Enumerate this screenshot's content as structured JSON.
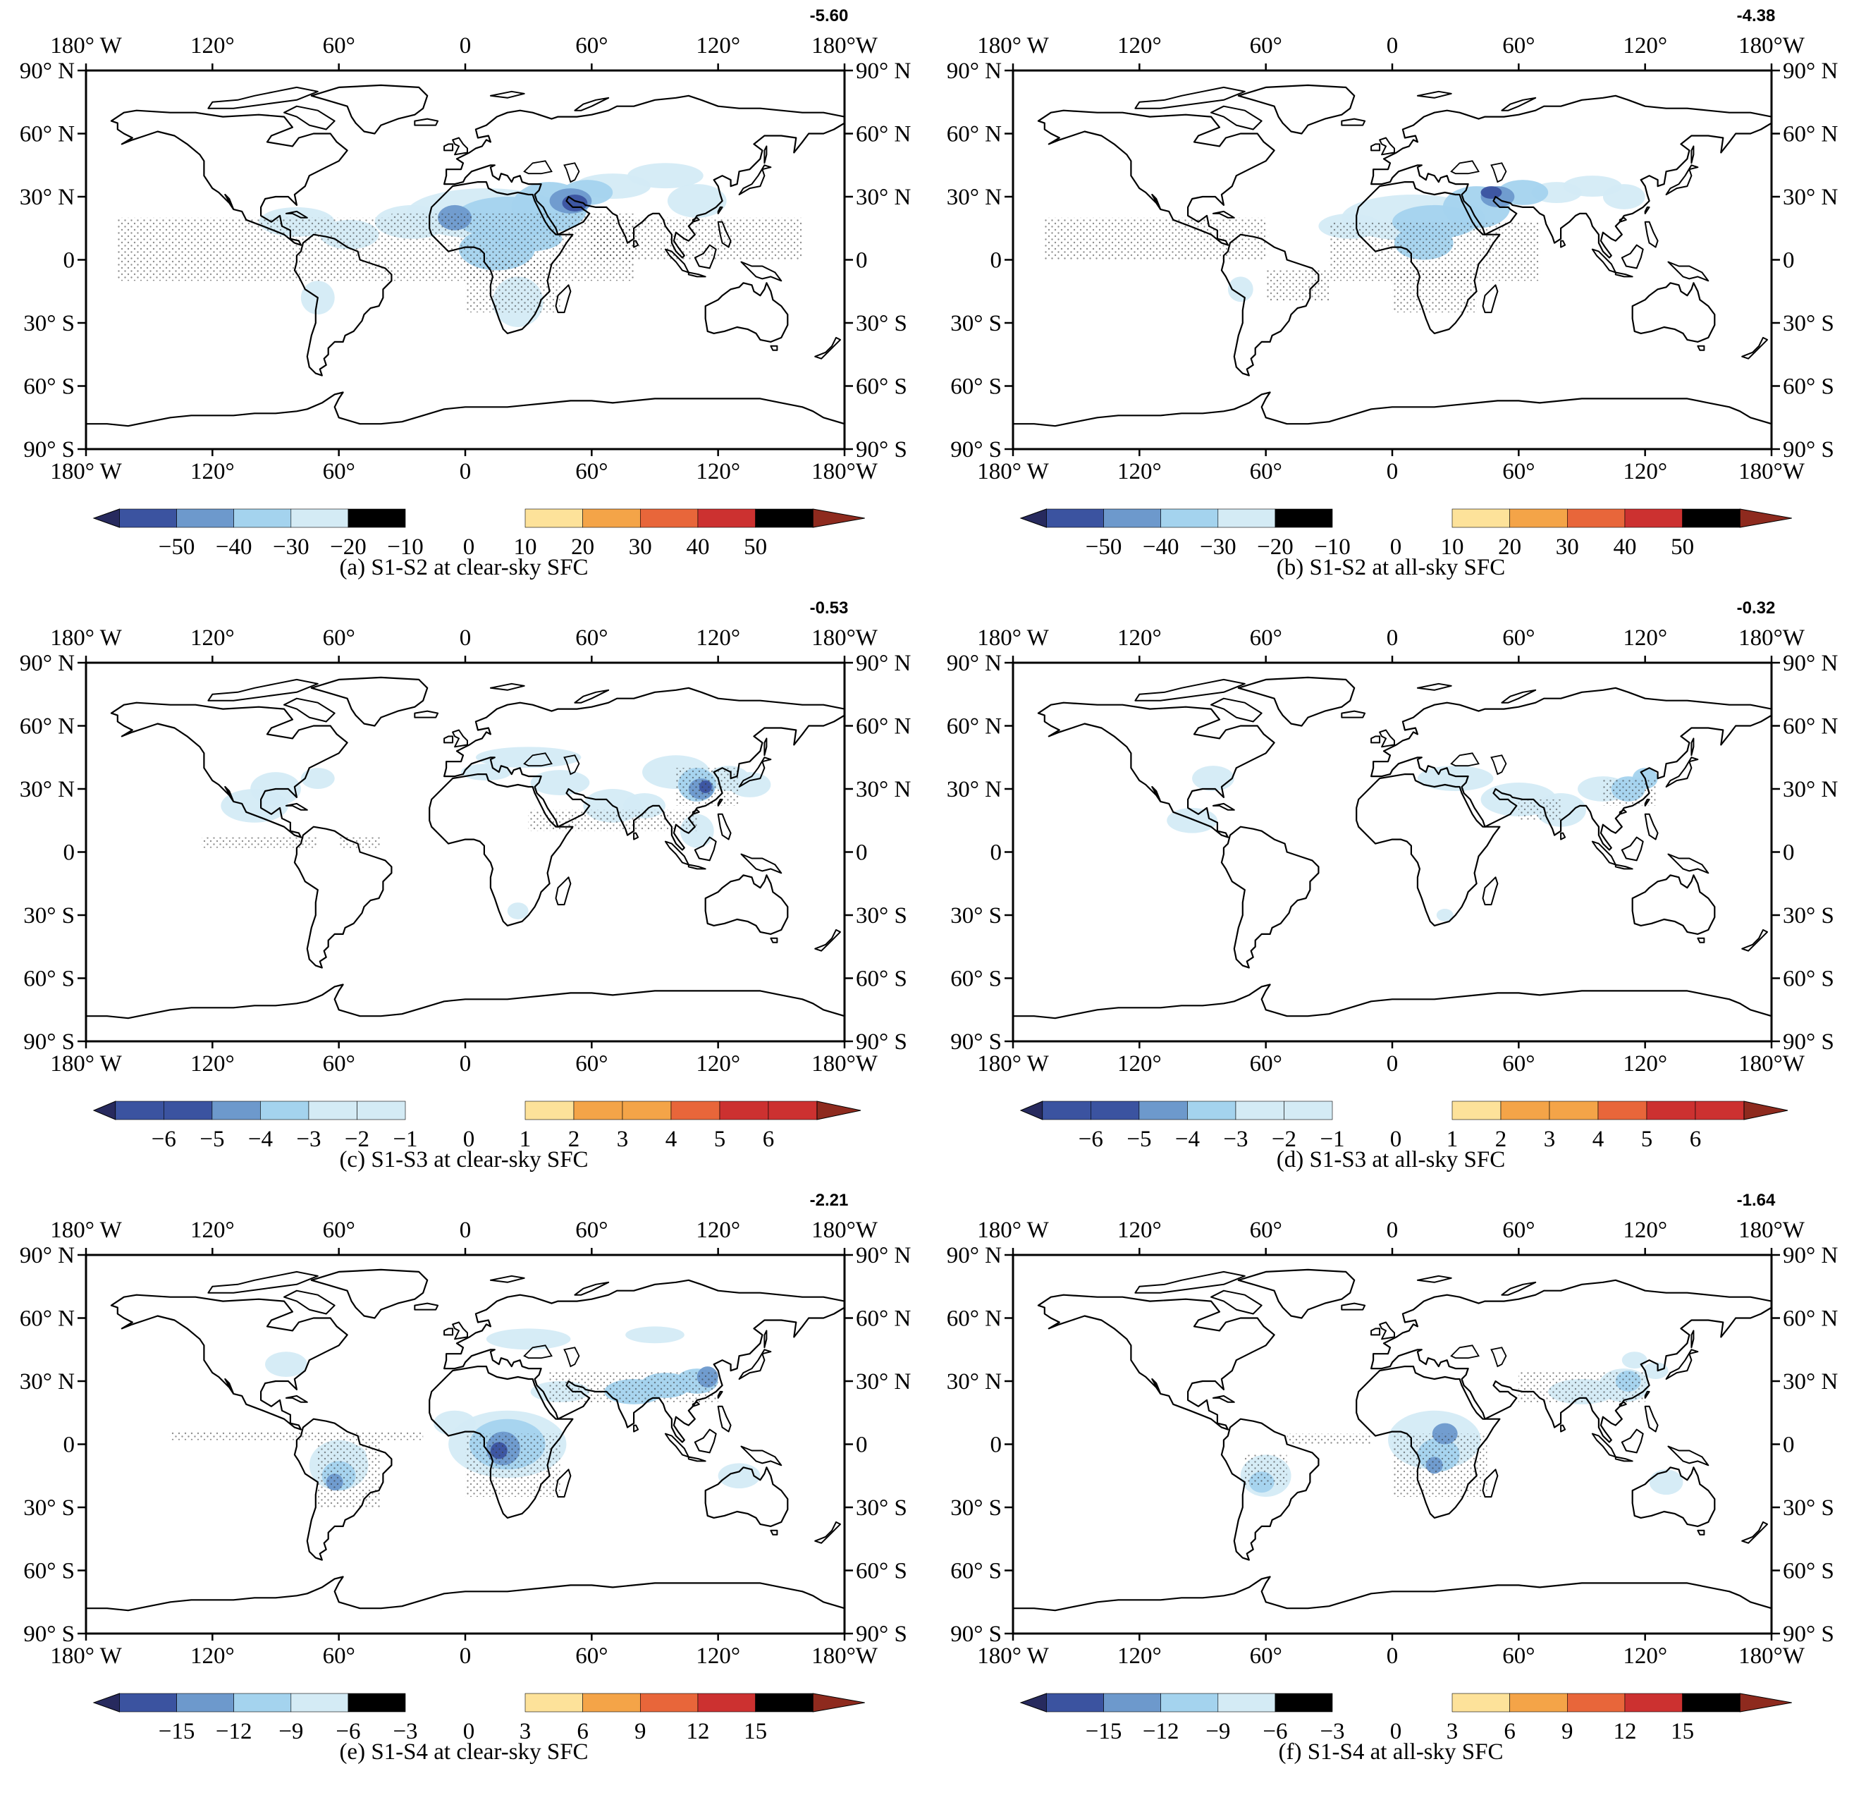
{
  "x_ticks_top": [
    "180° W",
    "120°",
    "60°",
    "0",
    "60°",
    "120°",
    "180°W"
  ],
  "x_ticks_bottom": [
    "180° W",
    "120°",
    "60°",
    "0",
    "60°",
    "120°",
    "180°W"
  ],
  "y_ticks_left": [
    "90° N",
    "60° N",
    "30° N",
    "0",
    "30° S",
    "60° S",
    "90° S"
  ],
  "y_ticks_right": [
    "90° N",
    "60° N",
    "30° N",
    "0",
    "30° S",
    "60° S",
    "90° S"
  ],
  "colors": {
    "neg_tip": "#272a5e",
    "neg": [
      "#3b53a0",
      "#6d99cc",
      "#a4d3ee",
      "#d4ebf5"
    ],
    "pos": [
      "#fde29a",
      "#f4a448",
      "#e8663a",
      "#cc3130"
    ],
    "pos_tip": "#8e2a1e",
    "land_line": "#000000",
    "stipple": "#333333"
  },
  "panels": [
    {
      "id": "a",
      "caption": "(a) S1-S2 at clear-sky SFC",
      "global_mean": "-5.60",
      "colorbar_neg": [
        "−50",
        "−40",
        "−30",
        "−20",
        "−10"
      ],
      "colorbar_zero": "0",
      "colorbar_pos": [
        "10",
        "20",
        "30",
        "40",
        "50"
      ]
    },
    {
      "id": "b",
      "caption": "(b) S1-S2 at all-sky SFC",
      "global_mean": "-4.38",
      "colorbar_neg": [
        "−50",
        "−40",
        "−30",
        "−20",
        "−10"
      ],
      "colorbar_zero": "0",
      "colorbar_pos": [
        "10",
        "20",
        "30",
        "40",
        "50"
      ]
    },
    {
      "id": "c",
      "caption": "(c) S1-S3 at clear-sky SFC",
      "global_mean": "-0.53",
      "colorbar_neg": [
        "−6",
        "−5",
        "−4",
        "−3",
        "−2",
        "−1"
      ],
      "colorbar_zero": "0",
      "colorbar_pos": [
        "1",
        "2",
        "3",
        "4",
        "5",
        "6"
      ]
    },
    {
      "id": "d",
      "caption": "(d) S1-S3 at all-sky SFC",
      "global_mean": "-0.32",
      "colorbar_neg": [
        "−6",
        "−5",
        "−4",
        "−3",
        "−2",
        "−1"
      ],
      "colorbar_zero": "0",
      "colorbar_pos": [
        "1",
        "2",
        "3",
        "4",
        "5",
        "6"
      ]
    },
    {
      "id": "e",
      "caption": "(e) S1-S4 at clear-sky SFC",
      "global_mean": "-2.21",
      "colorbar_neg": [
        "−15",
        "−12",
        "−9",
        "−6",
        "−3"
      ],
      "colorbar_zero": "0",
      "colorbar_pos": [
        "3",
        "6",
        "9",
        "12",
        "15"
      ]
    },
    {
      "id": "f",
      "caption": "(f) S1-S4 at all-sky SFC",
      "global_mean": "-1.64",
      "colorbar_neg": [
        "−15",
        "−12",
        "−9",
        "−6",
        "−3"
      ],
      "colorbar_zero": "0",
      "colorbar_pos": [
        "3",
        "6",
        "9",
        "12",
        "15"
      ]
    }
  ]
}
